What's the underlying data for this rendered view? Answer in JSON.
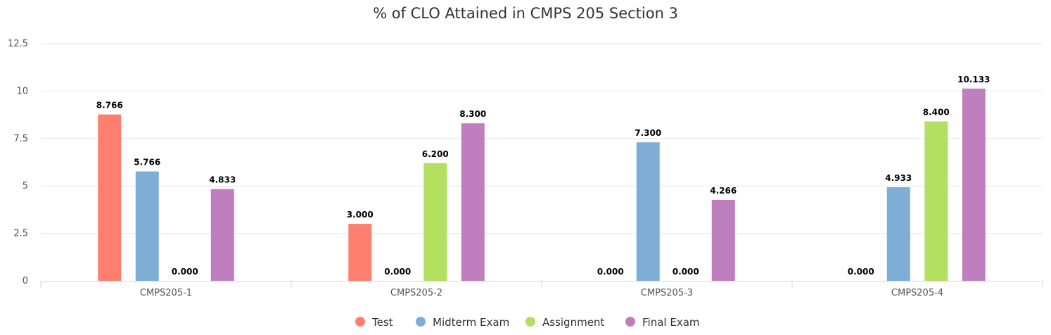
{
  "chart_data": {
    "type": "bar",
    "title": "% of CLO Attained in CMPS 205 Section 3",
    "xlabel": "",
    "ylabel": "",
    "categories": [
      "CMPS205-1",
      "CMPS205-2",
      "CMPS205-3",
      "CMPS205-4"
    ],
    "ylim": [
      0,
      12.5
    ],
    "yticks": [
      "0",
      "2.5",
      "5",
      "7.5",
      "10",
      "12.5"
    ],
    "grid": true,
    "legend_position": "bottom-center",
    "series": [
      {
        "name": "Test",
        "color": "#ff7f6e",
        "values": [
          8.766,
          3.0,
          0.0,
          0.0
        ],
        "labels": [
          "8.766",
          "3.000",
          "0.000",
          "0.000"
        ]
      },
      {
        "name": "Midterm Exam",
        "color": "#7eaed5",
        "values": [
          5.766,
          0.0,
          7.3,
          4.933
        ],
        "labels": [
          "5.766",
          "0.000",
          "7.300",
          "4.933"
        ]
      },
      {
        "name": "Assignment",
        "color": "#b3e060",
        "values": [
          0.0,
          6.2,
          0.0,
          8.4
        ],
        "labels": [
          "0.000",
          "6.200",
          "0.000",
          "8.400"
        ]
      },
      {
        "name": "Final Exam",
        "color": "#bf7fbf",
        "values": [
          4.833,
          8.3,
          4.266,
          10.133
        ],
        "labels": [
          "4.833",
          "8.300",
          "4.266",
          "10.133"
        ]
      }
    ]
  }
}
